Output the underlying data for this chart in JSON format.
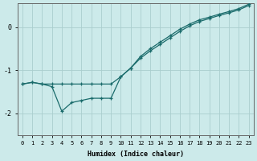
{
  "xlabel": "Humidex (Indice chaleur)",
  "bg_color": "#cceaea",
  "line_color": "#1a6b6b",
  "grid_color": "#aacece",
  "xlim": [
    -0.5,
    23.5
  ],
  "ylim": [
    -2.5,
    0.55
  ],
  "yticks": [
    -2,
    -1,
    0
  ],
  "xticks": [
    0,
    1,
    2,
    3,
    4,
    5,
    6,
    7,
    8,
    9,
    10,
    11,
    12,
    13,
    14,
    15,
    16,
    17,
    18,
    19,
    20,
    21,
    22,
    23
  ],
  "line1_x": [
    0,
    1,
    2,
    3,
    4,
    5,
    6,
    7,
    8,
    9,
    10,
    11,
    12,
    13,
    14,
    15,
    16,
    17,
    18,
    19,
    20,
    21,
    22,
    23
  ],
  "line1_y": [
    -1.32,
    -1.28,
    -1.32,
    -1.32,
    -1.32,
    -1.32,
    -1.32,
    -1.32,
    -1.32,
    -1.32,
    -1.15,
    -0.95,
    -0.72,
    -0.55,
    -0.4,
    -0.25,
    -0.1,
    0.03,
    0.13,
    0.2,
    0.27,
    0.33,
    0.4,
    0.5
  ],
  "line2_x": [
    0,
    1,
    2,
    3,
    4,
    5,
    6,
    7,
    8,
    9,
    10,
    11,
    12,
    13,
    14,
    15,
    16,
    17,
    18,
    19,
    20,
    21,
    22,
    23
  ],
  "line2_y": [
    -1.32,
    -1.28,
    -1.32,
    -1.38,
    -1.95,
    -1.75,
    -1.7,
    -1.65,
    -1.65,
    -1.65,
    -1.15,
    -0.95,
    -0.68,
    -0.5,
    -0.35,
    -0.2,
    -0.05,
    0.07,
    0.17,
    0.23,
    0.3,
    0.36,
    0.43,
    0.53
  ]
}
